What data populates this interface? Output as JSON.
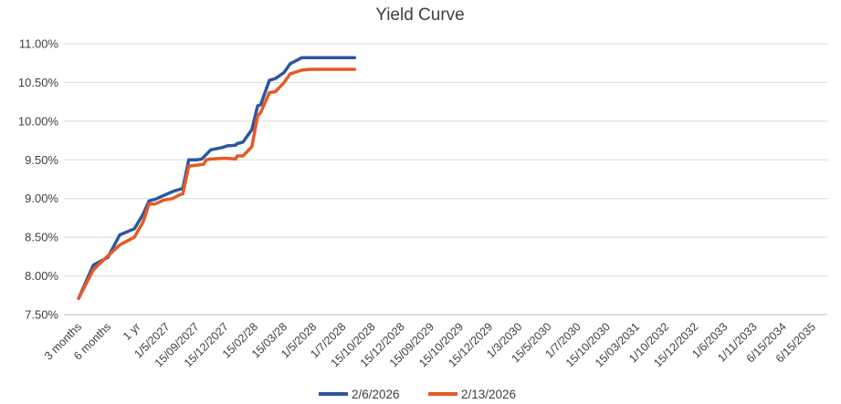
{
  "chart_data": {
    "type": "line",
    "title": "Yield Curve",
    "xlabel": "",
    "ylabel": "",
    "ylim": [
      7.5,
      11.0
    ],
    "yticks": [
      "7.50%",
      "8.00%",
      "8.50%",
      "9.00%",
      "9.50%",
      "10.00%",
      "10.50%",
      "11.00%"
    ],
    "grid": true,
    "legend_position": "bottom",
    "categories": [
      "3 months",
      "6 months",
      "1 yr",
      "1/5/2027",
      "15/09/2027",
      "15/12/2027",
      "15/02/28",
      "15/03/28",
      "1/5/2028",
      "1/7/2028",
      "15/10/2028",
      "15/12/2028",
      "15/09/2029",
      "15/10/2029",
      "15/12/2029",
      "1/3/2030",
      "15/5/2030",
      "1/7/2030",
      "15/10/2030",
      "15/03/2031",
      "1/10/2032",
      "15/12/2032",
      "1/6/2033",
      "1/11/2033",
      "6/15/2034",
      "6/15/2035"
    ],
    "x": [
      0,
      0.5,
      1,
      1.4,
      1.9,
      2.2,
      2.4,
      2.5,
      2.6,
      2.9,
      3.2,
      3.45,
      3.55,
      3.75,
      4.0,
      4.2,
      4.25,
      4.35,
      4.5,
      4.9,
      5.05,
      5.35,
      5.4,
      5.6,
      5.9,
      6.1,
      6.2,
      6.5,
      6.7,
      7.0,
      7.2,
      7.6,
      7.9,
      8.3,
      8.6,
      9.0,
      9.4
    ],
    "series": [
      {
        "name": "2/6/2026",
        "color": "#2e56a0",
        "values": [
          7.71,
          8.14,
          8.24,
          8.53,
          8.61,
          8.8,
          8.97,
          8.98,
          8.99,
          9.04,
          9.09,
          9.12,
          9.13,
          9.5,
          9.5,
          9.51,
          9.53,
          9.57,
          9.63,
          9.66,
          9.68,
          9.69,
          9.71,
          9.73,
          9.89,
          10.2,
          10.21,
          10.53,
          10.55,
          10.63,
          10.74,
          10.82,
          10.82,
          10.82,
          10.82,
          10.82,
          10.82
        ]
      },
      {
        "name": "2/13/2026",
        "color": "#e55a24",
        "values": [
          7.71,
          8.08,
          8.26,
          8.4,
          8.5,
          8.7,
          8.93,
          8.93,
          8.93,
          8.98,
          9.0,
          9.05,
          9.06,
          9.42,
          9.43,
          9.44,
          9.44,
          9.5,
          9.51,
          9.52,
          9.52,
          9.51,
          9.55,
          9.55,
          9.67,
          10.07,
          10.11,
          10.37,
          10.38,
          10.5,
          10.61,
          10.66,
          10.67,
          10.67,
          10.67,
          10.67,
          10.67
        ]
      }
    ]
  }
}
